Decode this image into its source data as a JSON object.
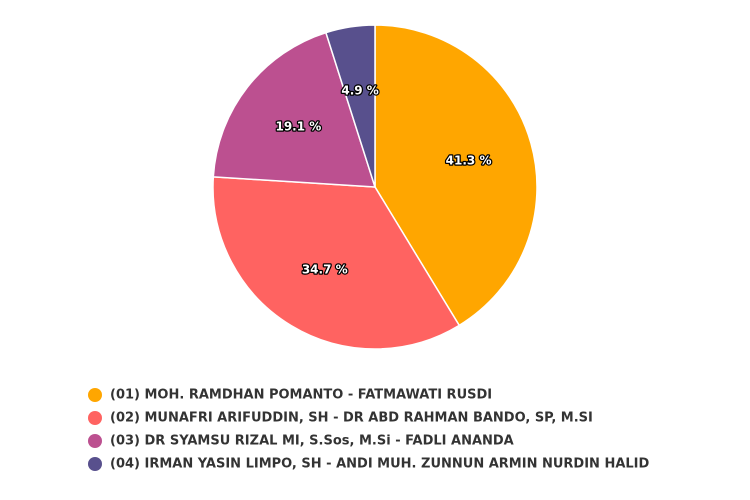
{
  "chart_data": {
    "type": "pie",
    "categories": [
      "(01) MOH. RAMDHAN POMANTO - FATMAWATI RUSDI",
      "(02) MUNAFRI ARIFUDDIN, SH - DR ABD RAHMAN BANDO, SP, M.SI",
      "(03) DR SYAMSU RIZAL MI, S.Sos, M.Si - FADLI ANANDA",
      "(04) IRMAN YASIN LIMPO, SH - ANDI MUH. ZUNNUN ARMIN NURDIN HALID"
    ],
    "values": [
      41.3,
      34.7,
      19.1,
      4.9
    ],
    "value_labels": [
      "41.3 %",
      "34.7 %",
      "19.1 %",
      "4.9 %"
    ],
    "colors": [
      "#ffa600",
      "#ff6361",
      "#bc5090",
      "#58508d"
    ],
    "legend": "bottom"
  }
}
